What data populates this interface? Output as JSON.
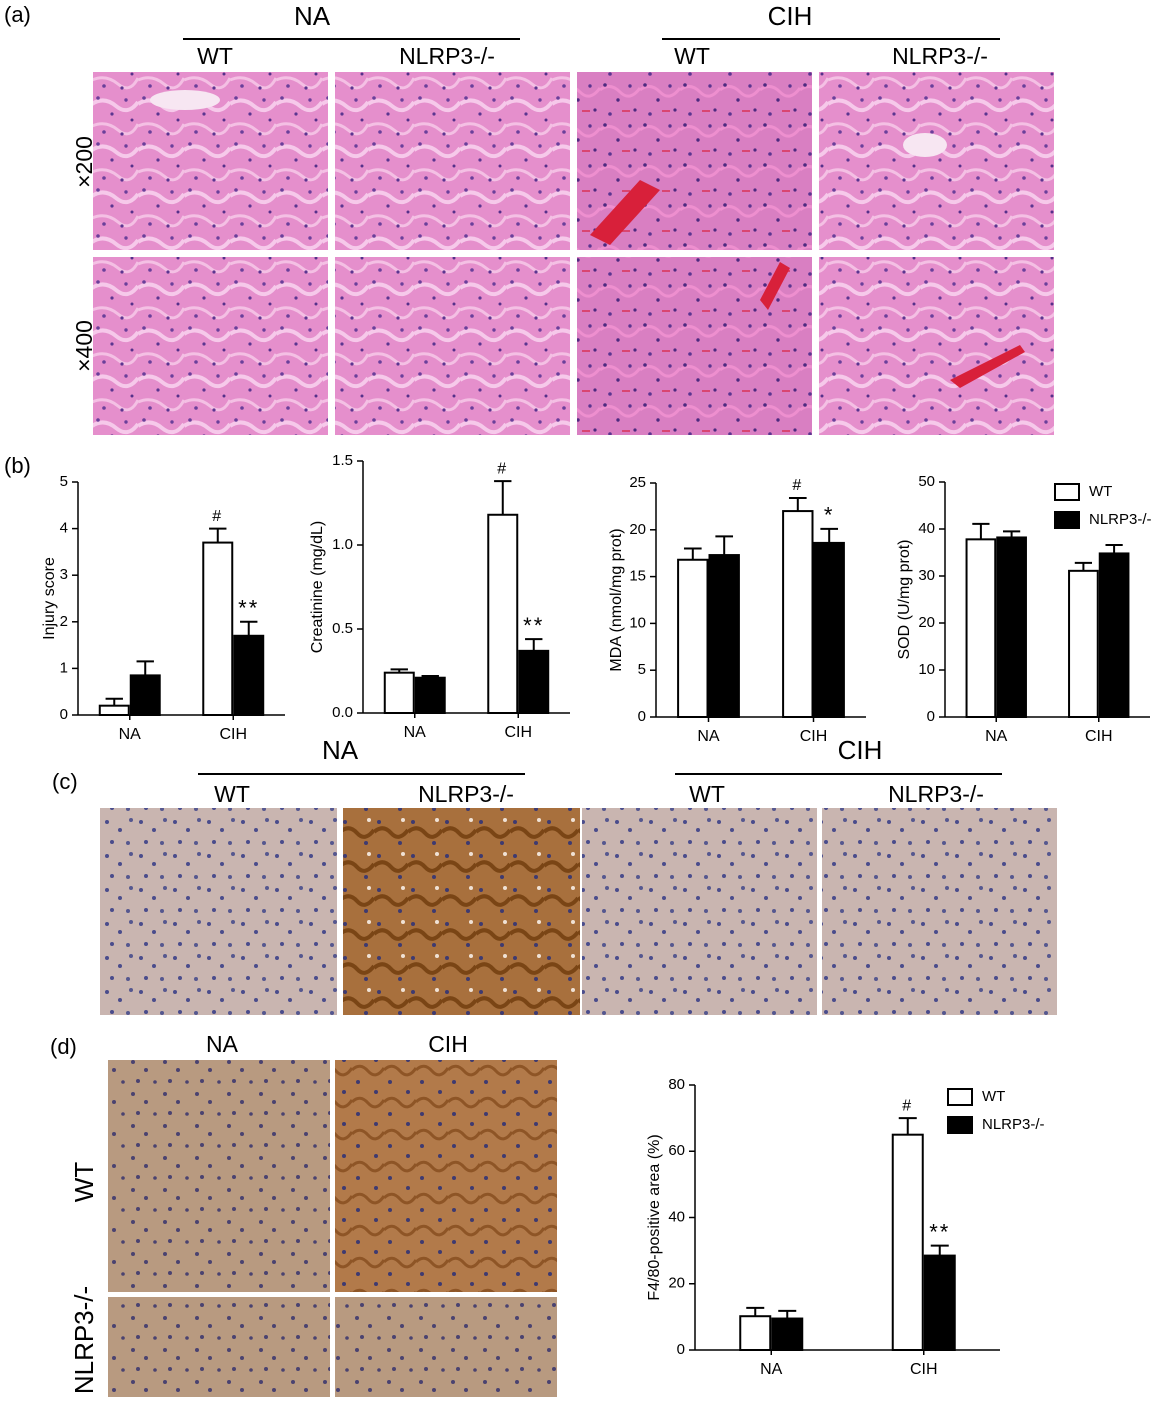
{
  "panel_labels": [
    "(a)",
    "(b)",
    "(c)",
    "(d)"
  ],
  "panel_a": {
    "groups": [
      "NA",
      "CIH"
    ],
    "genotypes": [
      "WT",
      "NLRP3-/-",
      "WT",
      "NLRP3-/-"
    ],
    "magnifications": [
      "×200",
      "×400"
    ]
  },
  "panel_c": {
    "groups": [
      "NA",
      "CIH"
    ],
    "genotypes": [
      "WT",
      "NLRP3-/-",
      "WT",
      "NLRP3-/-"
    ]
  },
  "panel_d": {
    "conditions": [
      "NA",
      "CIH"
    ],
    "genotypes": [
      "WT",
      "NLRP3-/-"
    ]
  },
  "chart_data": [
    {
      "type": "bar",
      "y_label": "Injury score",
      "categories": [
        "NA",
        "CIH"
      ],
      "ylim": [
        0,
        5
      ],
      "yticks": [
        0,
        1,
        2,
        3,
        4,
        5
      ],
      "legend": false,
      "series": [
        {
          "color": "#ffffff",
          "values": [
            0.2,
            3.7
          ],
          "errors": [
            0.15,
            0.3
          ],
          "markers": [
            null,
            "#"
          ]
        },
        {
          "color": "#000000",
          "values": [
            0.85,
            1.7
          ],
          "errors": [
            0.3,
            0.3
          ],
          "markers": [
            null,
            "**"
          ]
        }
      ]
    },
    {
      "type": "bar",
      "y_label": "Creatinine (mg/dL)",
      "categories": [
        "NA",
        "CIH"
      ],
      "ylim": [
        0,
        1.5
      ],
      "yticks": [
        {
          "value": 0,
          "label": "0.0"
        },
        0.5,
        {
          "value": 1,
          "label": "1.0"
        },
        1.5
      ],
      "legend": false,
      "series": [
        {
          "color": "#ffffff",
          "values": [
            0.24,
            1.18
          ],
          "errors": [
            0.02,
            0.2
          ],
          "markers": [
            null,
            "#"
          ]
        },
        {
          "color": "#000000",
          "values": [
            0.21,
            0.37
          ],
          "errors": [
            0.01,
            0.07
          ],
          "markers": [
            null,
            "**"
          ]
        }
      ]
    },
    {
      "type": "bar",
      "y_label": "MDA (nmol/mg  prot)",
      "categories": [
        "NA",
        "CIH"
      ],
      "ylim": [
        0,
        25
      ],
      "yticks": [
        0,
        5,
        10,
        15,
        20,
        25
      ],
      "legend": false,
      "series": [
        {
          "color": "#ffffff",
          "values": [
            16.8,
            22
          ],
          "errors": [
            1.2,
            1.4
          ],
          "markers": [
            null,
            "#"
          ]
        },
        {
          "color": "#000000",
          "values": [
            17.3,
            18.6
          ],
          "errors": [
            2,
            1.5
          ],
          "markers": [
            null,
            "*"
          ]
        }
      ]
    },
    {
      "type": "bar",
      "y_label": "SOD (U/mg prot)",
      "categories": [
        "NA",
        "CIH"
      ],
      "ylim": [
        0,
        50
      ],
      "yticks": [
        0,
        10,
        20,
        30,
        40,
        50
      ],
      "legend": true,
      "series": [
        {
          "name": "WT",
          "color": "#ffffff",
          "values": [
            37.8,
            31.1
          ],
          "errors": [
            3.3,
            1.7
          ]
        },
        {
          "name": "NLRP3-/-",
          "color": "#000000",
          "values": [
            38.2,
            34.8
          ],
          "errors": [
            1.3,
            1.8
          ]
        }
      ]
    },
    {
      "type": "bar",
      "y_label": "F4/80-positive area (%)",
      "categories": [
        "NA",
        "CIH"
      ],
      "ylim": [
        0,
        80
      ],
      "yticks": [
        0,
        20,
        40,
        60,
        80
      ],
      "legend": true,
      "series": [
        {
          "name": "WT",
          "color": "#ffffff",
          "values": [
            10.2,
            65
          ],
          "errors": [
            2.5,
            5
          ],
          "markers": [
            null,
            "#"
          ]
        },
        {
          "name": "NLRP3-/-",
          "color": "#000000",
          "values": [
            9.5,
            28.5
          ],
          "errors": [
            2.3,
            3
          ],
          "markers": [
            null,
            "**"
          ]
        }
      ]
    }
  ]
}
